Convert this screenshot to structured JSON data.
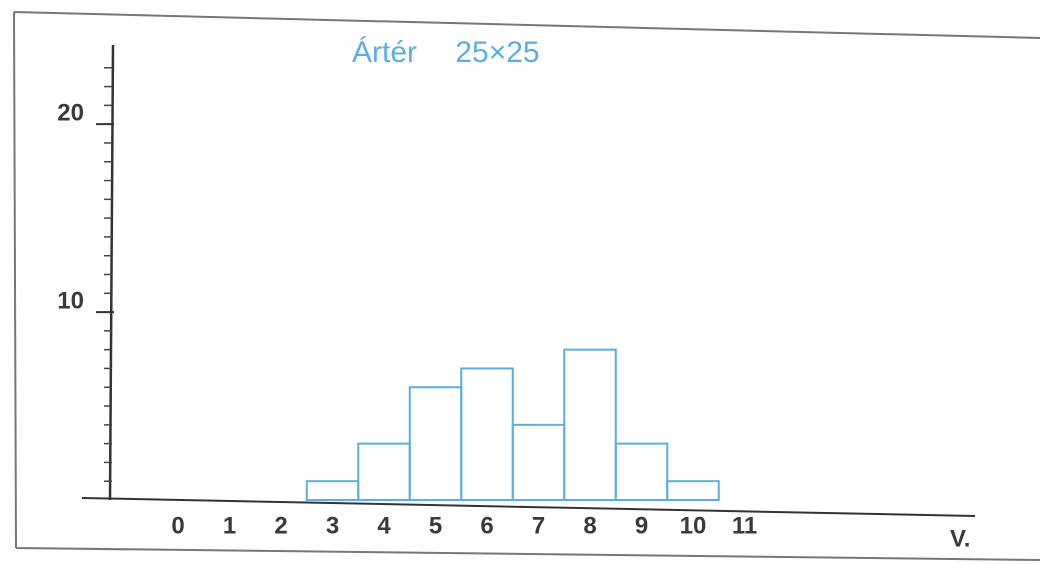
{
  "chart_data": {
    "type": "bar",
    "title": "Ártér 25×25",
    "xlabel": "V.",
    "categories": [
      "0",
      "1",
      "2",
      "3",
      "4",
      "5",
      "6",
      "7",
      "8",
      "9",
      "10",
      "11"
    ],
    "values": [
      0,
      0,
      0,
      1,
      3,
      6,
      7,
      4,
      8,
      3,
      1,
      0
    ],
    "color": "#5aaee0",
    "ylim": [
      0,
      24
    ],
    "yticks": [
      10,
      20
    ],
    "minor_ytick_step": 1,
    "grid": false
  }
}
